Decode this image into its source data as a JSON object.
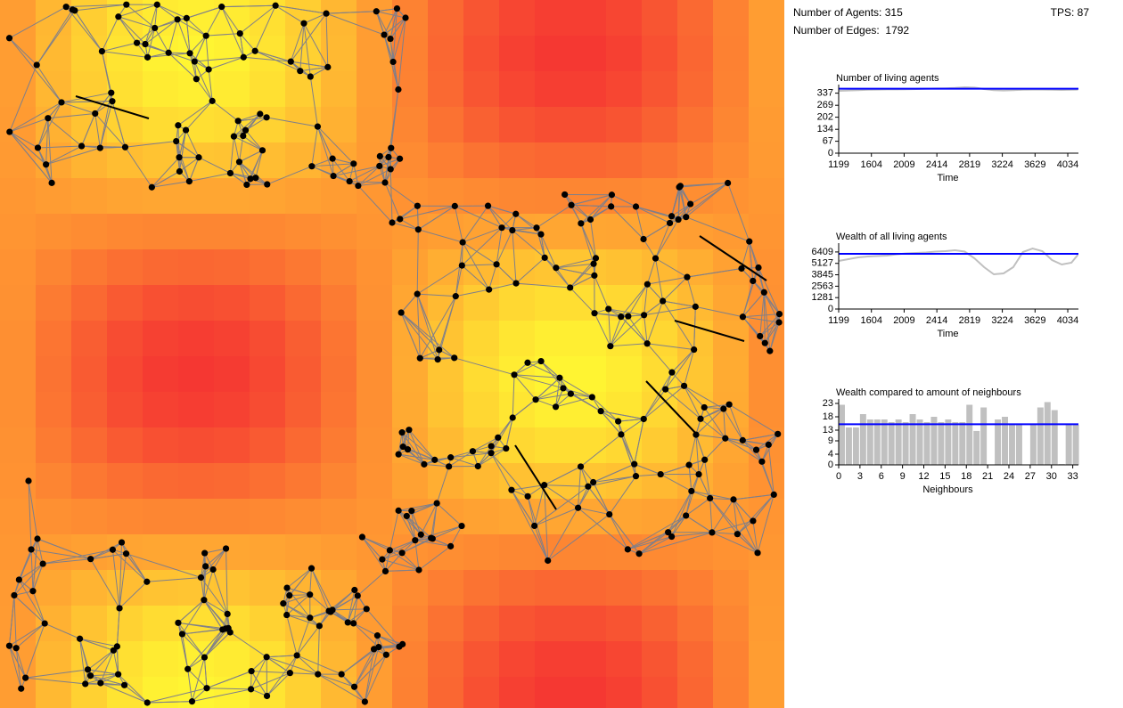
{
  "stats": {
    "agents_label": "Number of Agents:",
    "agents": 315,
    "edges_label": "Number of Edges:",
    "edges": 1792,
    "tps_label": "TPS:",
    "tps": 87
  },
  "chart_data": [
    {
      "type": "line",
      "title": "Number of living agents",
      "x_label": "Time",
      "x": [
        1199,
        1319,
        1439,
        1559,
        1679,
        1799,
        1919,
        2039,
        2159,
        2279,
        2399,
        2519,
        2639,
        2759,
        2879,
        2999,
        3119,
        3239,
        3359,
        3479,
        3599,
        3719,
        3839,
        3959,
        4079,
        4160
      ],
      "series": [
        {
          "color": "#c0c0c0",
          "values": [
            350,
            352,
            354,
            356,
            357,
            358,
            358,
            359,
            360,
            362,
            363,
            364,
            366,
            370,
            368,
            360,
            354,
            352,
            354,
            356,
            357,
            357,
            356,
            355,
            356,
            357
          ]
        }
      ],
      "average_line": {
        "value": 362,
        "color": "#0000ff"
      },
      "xlim": [
        1199,
        4166
      ],
      "xticks": [
        1199,
        1604,
        2009,
        2414,
        2819,
        3224,
        3629,
        4034
      ],
      "ylim": [
        0,
        375
      ],
      "yticks": [
        0,
        67,
        134,
        202,
        269,
        337
      ]
    },
    {
      "type": "line",
      "title": "Wealth of all living agents",
      "x_label": "Time",
      "x": [
        1199,
        1319,
        1439,
        1559,
        1679,
        1799,
        1919,
        2039,
        2159,
        2279,
        2399,
        2519,
        2639,
        2759,
        2879,
        2999,
        3119,
        3239,
        3359,
        3479,
        3599,
        3719,
        3839,
        3959,
        4079,
        4160
      ],
      "series": [
        {
          "color": "#c0c0c0",
          "values": [
            5400,
            5600,
            5800,
            5900,
            5950,
            6000,
            6150,
            6250,
            6300,
            6350,
            6450,
            6500,
            6600,
            6450,
            5700,
            4700,
            3900,
            4000,
            4700,
            6400,
            6800,
            6500,
            5500,
            5000,
            5200,
            6100
          ]
        }
      ],
      "average_line": {
        "value": 6200,
        "color": "#0000ff"
      },
      "xlim": [
        1199,
        4166
      ],
      "xticks": [
        1199,
        1604,
        2009,
        2414,
        2819,
        3224,
        3629,
        4034
      ],
      "ylim": [
        0,
        7200
      ],
      "yticks": [
        0,
        1281,
        2563,
        3845,
        5127,
        6409
      ]
    },
    {
      "type": "bar",
      "title": "Wealth compared to amount of neighbours",
      "x_label": "Neighbours",
      "color": "#c0c0c0",
      "x": [
        0,
        1,
        2,
        3,
        4,
        5,
        6,
        7,
        8,
        9,
        10,
        11,
        12,
        13,
        14,
        15,
        16,
        17,
        18,
        19,
        20,
        21,
        22,
        23,
        24,
        25,
        26,
        27,
        28,
        29,
        30,
        31,
        32,
        33
      ],
      "values": [
        22.5,
        14,
        14,
        19,
        17,
        17,
        17,
        16,
        17,
        16,
        19,
        17,
        16,
        18,
        16,
        17,
        16,
        16,
        22.5,
        12.7,
        21.5,
        0,
        17,
        18,
        15,
        15,
        0,
        15,
        21.5,
        23.5,
        20.5,
        0.3,
        15,
        15
      ],
      "average_line": {
        "value": 15.2,
        "color": "#0000ff"
      },
      "xlim": [
        0,
        33.8
      ],
      "xticks": [
        0,
        3,
        6,
        9,
        12,
        15,
        18,
        21,
        24,
        27,
        30,
        33
      ],
      "ylim": [
        0,
        24
      ],
      "yticks": [
        0,
        4,
        9,
        13,
        18,
        23
      ]
    }
  ]
}
